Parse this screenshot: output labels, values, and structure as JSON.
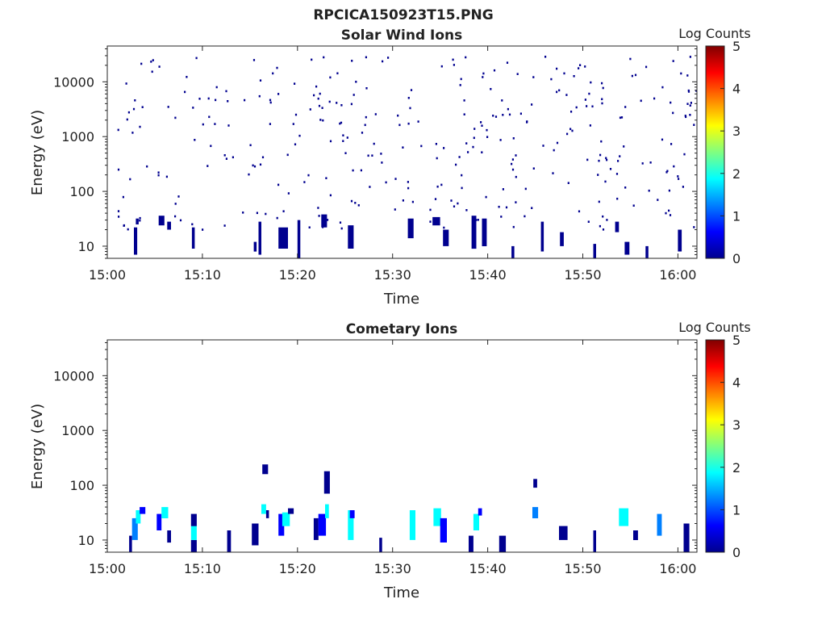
{
  "figure": {
    "title": "RPCICA150923T15.PNG"
  },
  "colormap": [
    "#00008f",
    "#0000ff",
    "#0080ff",
    "#00ffff",
    "#80ff80",
    "#ffff00",
    "#ff8000",
    "#ff0000",
    "#800000"
  ],
  "chart_data": [
    {
      "type": "heatmap",
      "title": "Solar Wind Ions",
      "xlabel": "Time",
      "ylabel": "Energy (eV)",
      "x_scale": "time",
      "y_scale": "log",
      "xlim": [
        "15:00",
        "16:02"
      ],
      "ylim": [
        6,
        45000
      ],
      "x_ticks": [
        "15:00",
        "15:10",
        "15:20",
        "15:30",
        "15:40",
        "15:50",
        "16:00"
      ],
      "y_ticks": [
        10,
        100,
        1000,
        10000
      ],
      "y_tick_labels": [
        "10",
        "100",
        "1000",
        "10000"
      ],
      "colorbar": {
        "label": "Log Counts",
        "range": [
          0,
          5
        ],
        "ticks": [
          "0",
          "1",
          "2",
          "3",
          "4",
          "5"
        ]
      },
      "scatter_seed": 1,
      "scatter_count": 330,
      "cells": [
        {
          "t": 2.8,
          "e": 7,
          "v": 0.2,
          "w": 0.35,
          "eh": 22
        },
        {
          "t": 3.0,
          "e": 25,
          "v": 0.3,
          "w": 0.3,
          "eh": 32
        },
        {
          "t": 5.4,
          "e": 24,
          "v": 0.2,
          "w": 0.6,
          "eh": 36
        },
        {
          "t": 6.3,
          "e": 20,
          "v": 0.3,
          "w": 0.4,
          "eh": 28
        },
        {
          "t": 8.9,
          "e": 9,
          "v": 0.2,
          "w": 0.3,
          "eh": 22
        },
        {
          "t": 15.4,
          "e": 8,
          "v": 0.2,
          "w": 0.3,
          "eh": 12
        },
        {
          "t": 15.9,
          "e": 7,
          "v": 0.2,
          "w": 0.3,
          "eh": 28
        },
        {
          "t": 18.0,
          "e": 9,
          "v": 0.3,
          "w": 1.0,
          "eh": 22
        },
        {
          "t": 20.0,
          "e": 6,
          "v": 0.2,
          "w": 0.3,
          "eh": 30
        },
        {
          "t": 22.5,
          "e": 22,
          "v": 0.2,
          "w": 0.6,
          "eh": 38
        },
        {
          "t": 25.3,
          "e": 9,
          "v": 0.3,
          "w": 0.6,
          "eh": 24
        },
        {
          "t": 31.6,
          "e": 14,
          "v": 0.3,
          "w": 0.6,
          "eh": 32
        },
        {
          "t": 34.2,
          "e": 24,
          "v": 0.2,
          "w": 0.8,
          "eh": 34
        },
        {
          "t": 35.3,
          "e": 10,
          "v": 0.2,
          "w": 0.6,
          "eh": 20
        },
        {
          "t": 38.3,
          "e": 9,
          "v": 0.3,
          "w": 0.5,
          "eh": 36
        },
        {
          "t": 39.4,
          "e": 10,
          "v": 0.2,
          "w": 0.5,
          "eh": 32
        },
        {
          "t": 42.5,
          "e": 6,
          "v": 0.2,
          "w": 0.3,
          "eh": 10
        },
        {
          "t": 45.6,
          "e": 8,
          "v": 0.2,
          "w": 0.3,
          "eh": 28
        },
        {
          "t": 47.6,
          "e": 10,
          "v": 0.2,
          "w": 0.4,
          "eh": 18
        },
        {
          "t": 51.1,
          "e": 6,
          "v": 0.2,
          "w": 0.3,
          "eh": 11
        },
        {
          "t": 53.4,
          "e": 18,
          "v": 0.2,
          "w": 0.4,
          "eh": 28
        },
        {
          "t": 54.4,
          "e": 7,
          "v": 0.3,
          "w": 0.5,
          "eh": 12
        },
        {
          "t": 56.6,
          "e": 6,
          "v": 0.2,
          "w": 0.3,
          "eh": 10
        },
        {
          "t": 60.0,
          "e": 8,
          "v": 0.2,
          "w": 0.4,
          "eh": 20
        }
      ]
    },
    {
      "type": "heatmap",
      "title": "Cometary Ions",
      "xlabel": "Time",
      "ylabel": "Energy (eV)",
      "x_scale": "time",
      "y_scale": "log",
      "xlim": [
        "15:00",
        "16:02"
      ],
      "ylim": [
        6,
        45000
      ],
      "x_ticks": [
        "15:00",
        "15:10",
        "15:20",
        "15:30",
        "15:40",
        "15:50",
        "16:00"
      ],
      "y_ticks": [
        10,
        100,
        1000,
        10000
      ],
      "y_tick_labels": [
        "10",
        "100",
        "1000",
        "10000"
      ],
      "colorbar": {
        "label": "Log Counts",
        "range": [
          0,
          5
        ],
        "ticks": [
          "0",
          "1",
          "2",
          "3",
          "4",
          "5"
        ]
      },
      "scatter_seed": 0,
      "scatter_count": 0,
      "cells": [
        {
          "t": 2.3,
          "e": 6,
          "v": 0.3,
          "w": 0.3,
          "eh": 12
        },
        {
          "t": 2.6,
          "e": 10,
          "v": 1.0,
          "w": 0.6,
          "eh": 25
        },
        {
          "t": 3.0,
          "e": 20,
          "v": 1.8,
          "w": 0.5,
          "eh": 35
        },
        {
          "t": 3.4,
          "e": 30,
          "v": 0.4,
          "w": 0.6,
          "eh": 40
        },
        {
          "t": 5.2,
          "e": 15,
          "v": 0.6,
          "w": 0.5,
          "eh": 30
        },
        {
          "t": 5.7,
          "e": 25,
          "v": 1.8,
          "w": 0.7,
          "eh": 40
        },
        {
          "t": 6.3,
          "e": 9,
          "v": 0.3,
          "w": 0.4,
          "eh": 15
        },
        {
          "t": 8.8,
          "e": 6,
          "v": 0.3,
          "w": 0.6,
          "eh": 10
        },
        {
          "t": 8.8,
          "e": 10,
          "v": 1.8,
          "w": 0.6,
          "eh": 18
        },
        {
          "t": 8.8,
          "e": 18,
          "v": 0.3,
          "w": 0.6,
          "eh": 30
        },
        {
          "t": 12.6,
          "e": 6,
          "v": 0.3,
          "w": 0.4,
          "eh": 15
        },
        {
          "t": 15.2,
          "e": 8,
          "v": 0.3,
          "w": 0.7,
          "eh": 20
        },
        {
          "t": 16.2,
          "e": 30,
          "v": 2.0,
          "w": 0.5,
          "eh": 45
        },
        {
          "t": 16.3,
          "e": 160,
          "v": 0.3,
          "w": 0.6,
          "eh": 240
        },
        {
          "t": 16.7,
          "e": 25,
          "v": 0.3,
          "w": 0.3,
          "eh": 35
        },
        {
          "t": 18.0,
          "e": 12,
          "v": 0.4,
          "w": 0.6,
          "eh": 30
        },
        {
          "t": 18.4,
          "e": 18,
          "v": 1.8,
          "w": 0.8,
          "eh": 32
        },
        {
          "t": 19.0,
          "e": 30,
          "v": 0.3,
          "w": 0.6,
          "eh": 38
        },
        {
          "t": 21.7,
          "e": 10,
          "v": 0.3,
          "w": 0.5,
          "eh": 25
        },
        {
          "t": 22.2,
          "e": 12,
          "v": 0.4,
          "w": 0.8,
          "eh": 30
        },
        {
          "t": 22.9,
          "e": 25,
          "v": 1.8,
          "w": 0.4,
          "eh": 45
        },
        {
          "t": 22.8,
          "e": 70,
          "v": 0.3,
          "w": 0.6,
          "eh": 180
        },
        {
          "t": 25.3,
          "e": 10,
          "v": 1.8,
          "w": 0.6,
          "eh": 35
        },
        {
          "t": 25.5,
          "e": 25,
          "v": 0.5,
          "w": 0.5,
          "eh": 35
        },
        {
          "t": 28.6,
          "e": 6,
          "v": 0.3,
          "w": 0.3,
          "eh": 11
        },
        {
          "t": 31.8,
          "e": 10,
          "v": 1.8,
          "w": 0.6,
          "eh": 35
        },
        {
          "t": 34.3,
          "e": 18,
          "v": 1.8,
          "w": 0.8,
          "eh": 38
        },
        {
          "t": 35.0,
          "e": 9,
          "v": 0.6,
          "w": 0.7,
          "eh": 25
        },
        {
          "t": 38.0,
          "e": 6,
          "v": 0.3,
          "w": 0.5,
          "eh": 12
        },
        {
          "t": 38.5,
          "e": 15,
          "v": 1.8,
          "w": 0.6,
          "eh": 30
        },
        {
          "t": 39.0,
          "e": 28,
          "v": 0.4,
          "w": 0.4,
          "eh": 38
        },
        {
          "t": 41.2,
          "e": 6,
          "v": 0.3,
          "w": 0.7,
          "eh": 12
        },
        {
          "t": 44.7,
          "e": 25,
          "v": 1.5,
          "w": 0.6,
          "eh": 40
        },
        {
          "t": 44.8,
          "e": 90,
          "v": 0.3,
          "w": 0.4,
          "eh": 130
        },
        {
          "t": 47.5,
          "e": 10,
          "v": 0.3,
          "w": 0.9,
          "eh": 18
        },
        {
          "t": 51.1,
          "e": 6,
          "v": 0.3,
          "w": 0.3,
          "eh": 15
        },
        {
          "t": 53.8,
          "e": 18,
          "v": 1.8,
          "w": 1.0,
          "eh": 38
        },
        {
          "t": 55.3,
          "e": 10,
          "v": 0.3,
          "w": 0.5,
          "eh": 15
        },
        {
          "t": 57.8,
          "e": 12,
          "v": 1.3,
          "w": 0.5,
          "eh": 30
        },
        {
          "t": 60.6,
          "e": 6,
          "v": 0.3,
          "w": 0.6,
          "eh": 20
        }
      ]
    }
  ]
}
